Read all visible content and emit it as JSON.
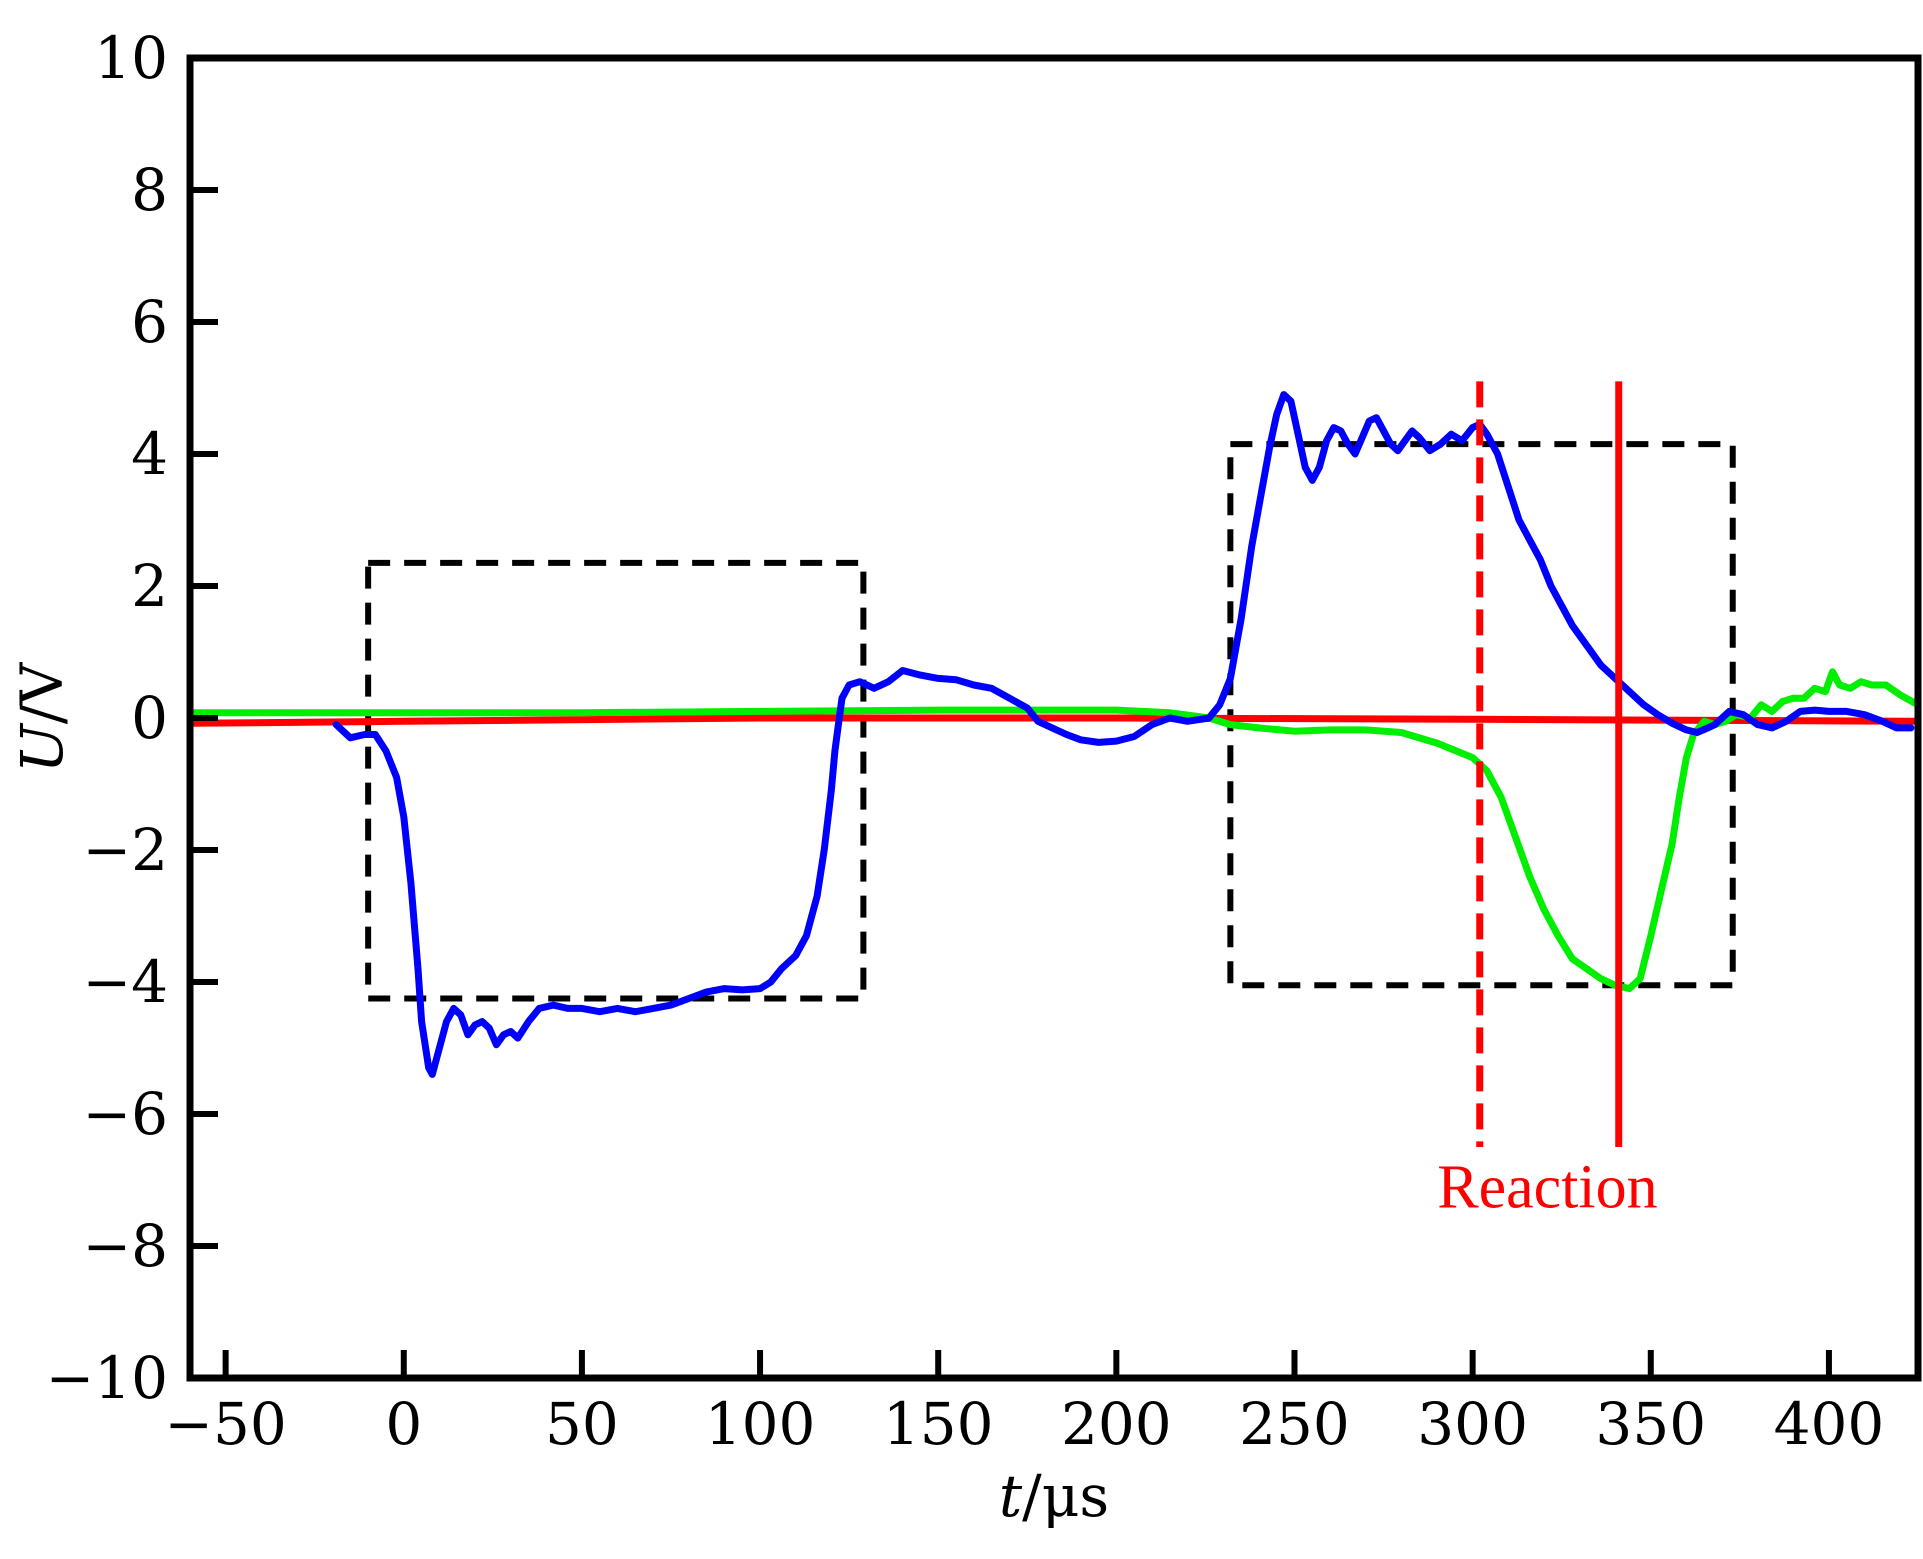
{
  "chart_data": {
    "type": "line",
    "xlabel": {
      "var": "t",
      "unit": "/μs"
    },
    "ylabel": {
      "var": "U",
      "unit": "/V"
    },
    "xlim": [
      -60,
      425
    ],
    "ylim": [
      -10,
      10
    ],
    "xticks": [
      -50,
      0,
      50,
      100,
      150,
      200,
      250,
      300,
      350,
      400
    ],
    "yticks": [
      -10,
      -8,
      -6,
      -4,
      -2,
      0,
      2,
      4,
      6,
      8,
      10
    ],
    "xtick_labels": [
      "−50",
      "0",
      "50",
      "100",
      "150",
      "200",
      "250",
      "300",
      "350",
      "400"
    ],
    "ytick_labels": [
      "−10",
      "−8",
      "−6",
      "−4",
      "−2",
      "0",
      "2",
      "4",
      "6",
      "8",
      "10"
    ],
    "grid": false,
    "series": [
      {
        "color": "#0000ff",
        "points": [
          [
            -19,
            -0.1
          ],
          [
            -15,
            -0.3
          ],
          [
            -11,
            -0.25
          ],
          [
            -8,
            -0.25
          ],
          [
            -5,
            -0.5
          ],
          [
            -2,
            -0.9
          ],
          [
            0,
            -1.5
          ],
          [
            2,
            -2.5
          ],
          [
            4,
            -3.8
          ],
          [
            5,
            -4.6
          ],
          [
            7,
            -5.3
          ],
          [
            8,
            -5.4
          ],
          [
            10,
            -5.0
          ],
          [
            12,
            -4.6
          ],
          [
            14,
            -4.4
          ],
          [
            16,
            -4.5
          ],
          [
            18,
            -4.8
          ],
          [
            20,
            -4.65
          ],
          [
            22,
            -4.6
          ],
          [
            24,
            -4.7
          ],
          [
            26,
            -4.95
          ],
          [
            28,
            -4.8
          ],
          [
            30,
            -4.75
          ],
          [
            32,
            -4.85
          ],
          [
            35,
            -4.6
          ],
          [
            38,
            -4.4
          ],
          [
            42,
            -4.35
          ],
          [
            46,
            -4.4
          ],
          [
            50,
            -4.4
          ],
          [
            55,
            -4.45
          ],
          [
            60,
            -4.4
          ],
          [
            65,
            -4.45
          ],
          [
            70,
            -4.4
          ],
          [
            75,
            -4.35
          ],
          [
            80,
            -4.25
          ],
          [
            85,
            -4.15
          ],
          [
            90,
            -4.1
          ],
          [
            95,
            -4.12
          ],
          [
            100,
            -4.1
          ],
          [
            103,
            -4.0
          ],
          [
            106,
            -3.8
          ],
          [
            110,
            -3.6
          ],
          [
            113,
            -3.3
          ],
          [
            116,
            -2.7
          ],
          [
            118,
            -2.0
          ],
          [
            120,
            -1.1
          ],
          [
            121,
            -0.5
          ],
          [
            122,
            -0.1
          ],
          [
            123,
            0.3
          ],
          [
            125,
            0.5
          ],
          [
            128,
            0.55
          ],
          [
            132,
            0.45
          ],
          [
            136,
            0.55
          ],
          [
            140,
            0.72
          ],
          [
            145,
            0.65
          ],
          [
            150,
            0.6
          ],
          [
            155,
            0.58
          ],
          [
            160,
            0.5
          ],
          [
            165,
            0.45
          ],
          [
            170,
            0.3
          ],
          [
            175,
            0.15
          ],
          [
            178,
            -0.05
          ],
          [
            182,
            -0.15
          ],
          [
            186,
            -0.25
          ],
          [
            190,
            -0.33
          ],
          [
            195,
            -0.37
          ],
          [
            200,
            -0.35
          ],
          [
            205,
            -0.28
          ],
          [
            210,
            -0.1
          ],
          [
            215,
            0.0
          ],
          [
            220,
            -0.05
          ],
          [
            226,
            0.0
          ],
          [
            229,
            0.2
          ],
          [
            232,
            0.6
          ],
          [
            235,
            1.5
          ],
          [
            238,
            2.6
          ],
          [
            241,
            3.5
          ],
          [
            243,
            4.1
          ],
          [
            245,
            4.6
          ],
          [
            247,
            4.9
          ],
          [
            249,
            4.8
          ],
          [
            251,
            4.3
          ],
          [
            253,
            3.8
          ],
          [
            255,
            3.6
          ],
          [
            257,
            3.8
          ],
          [
            259,
            4.2
          ],
          [
            261,
            4.4
          ],
          [
            263,
            4.35
          ],
          [
            265,
            4.15
          ],
          [
            267,
            4.0
          ],
          [
            269,
            4.25
          ],
          [
            271,
            4.5
          ],
          [
            273,
            4.55
          ],
          [
            275,
            4.35
          ],
          [
            277,
            4.15
          ],
          [
            279,
            4.05
          ],
          [
            281,
            4.2
          ],
          [
            283,
            4.35
          ],
          [
            285,
            4.25
          ],
          [
            288,
            4.05
          ],
          [
            291,
            4.15
          ],
          [
            294,
            4.3
          ],
          [
            297,
            4.2
          ],
          [
            300,
            4.4
          ],
          [
            302,
            4.45
          ],
          [
            304,
            4.3
          ],
          [
            307,
            4.0
          ],
          [
            310,
            3.5
          ],
          [
            313,
            3.0
          ],
          [
            316,
            2.7
          ],
          [
            319,
            2.4
          ],
          [
            322,
            2.0
          ],
          [
            325,
            1.7
          ],
          [
            328,
            1.4
          ],
          [
            332,
            1.1
          ],
          [
            336,
            0.8
          ],
          [
            340,
            0.6
          ],
          [
            344,
            0.4
          ],
          [
            348,
            0.2
          ],
          [
            352,
            0.05
          ],
          [
            356,
            -0.08
          ],
          [
            360,
            -0.18
          ],
          [
            363,
            -0.22
          ],
          [
            366,
            -0.15
          ],
          [
            368,
            -0.1
          ],
          [
            372,
            0.1
          ],
          [
            376,
            0.05
          ],
          [
            380,
            -0.1
          ],
          [
            384,
            -0.15
          ],
          [
            388,
            -0.05
          ],
          [
            392,
            0.1
          ],
          [
            396,
            0.12
          ],
          [
            400,
            0.1
          ],
          [
            405,
            0.1
          ],
          [
            410,
            0.05
          ],
          [
            415,
            -0.05
          ],
          [
            419,
            -0.15
          ],
          [
            423,
            -0.15
          ]
        ]
      },
      {
        "color": "#00ee00",
        "points": [
          [
            -60,
            0.08
          ],
          [
            0,
            0.08
          ],
          [
            50,
            0.08
          ],
          [
            100,
            0.1
          ],
          [
            150,
            0.12
          ],
          [
            180,
            0.12
          ],
          [
            200,
            0.12
          ],
          [
            215,
            0.08
          ],
          [
            226,
            0.0
          ],
          [
            232,
            -0.1
          ],
          [
            240,
            -0.15
          ],
          [
            250,
            -0.2
          ],
          [
            260,
            -0.18
          ],
          [
            270,
            -0.18
          ],
          [
            280,
            -0.22
          ],
          [
            290,
            -0.38
          ],
          [
            300,
            -0.6
          ],
          [
            304,
            -0.8
          ],
          [
            308,
            -1.2
          ],
          [
            312,
            -1.8
          ],
          [
            316,
            -2.4
          ],
          [
            320,
            -2.9
          ],
          [
            324,
            -3.3
          ],
          [
            328,
            -3.65
          ],
          [
            332,
            -3.8
          ],
          [
            336,
            -3.95
          ],
          [
            340,
            -4.05
          ],
          [
            344,
            -4.1
          ],
          [
            347,
            -3.95
          ],
          [
            350,
            -3.3
          ],
          [
            353,
            -2.6
          ],
          [
            356,
            -1.9
          ],
          [
            358,
            -1.2
          ],
          [
            360,
            -0.6
          ],
          [
            362,
            -0.25
          ],
          [
            365,
            -0.05
          ],
          [
            368,
            -0.1
          ],
          [
            371,
            -0.05
          ],
          [
            374,
            0.05
          ],
          [
            378,
            0.0
          ],
          [
            381,
            0.2
          ],
          [
            384,
            0.1
          ],
          [
            387,
            0.25
          ],
          [
            390,
            0.3
          ],
          [
            393,
            0.3
          ],
          [
            396,
            0.45
          ],
          [
            399,
            0.4
          ],
          [
            401,
            0.7
          ],
          [
            403,
            0.5
          ],
          [
            406,
            0.45
          ],
          [
            409,
            0.55
          ],
          [
            412,
            0.5
          ],
          [
            416,
            0.5
          ],
          [
            420,
            0.35
          ],
          [
            425,
            0.2
          ]
        ]
      },
      {
        "color": "#ff0000",
        "points": [
          [
            -60,
            -0.08
          ],
          [
            0,
            -0.05
          ],
          [
            100,
            0.0
          ],
          [
            200,
            0.0
          ],
          [
            300,
            -0.02
          ],
          [
            425,
            -0.05
          ]
        ]
      }
    ],
    "boxes": [
      {
        "x": [
          -10,
          129
        ],
        "y": [
          -4.25,
          2.35
        ]
      },
      {
        "x": [
          232,
          373
        ],
        "y": [
          -4.05,
          4.15
        ]
      }
    ],
    "vlines": [
      {
        "x": 302,
        "y": [
          -6.5,
          5.1
        ],
        "style": "dashed",
        "color": "#ff0000"
      },
      {
        "x": 341,
        "y": [
          -6.5,
          5.1
        ],
        "style": "solid",
        "color": "#ff0000"
      }
    ],
    "annotations": [
      {
        "text": "Reaction",
        "x": 321,
        "y": -7.2,
        "color": "#ff0000"
      }
    ]
  }
}
